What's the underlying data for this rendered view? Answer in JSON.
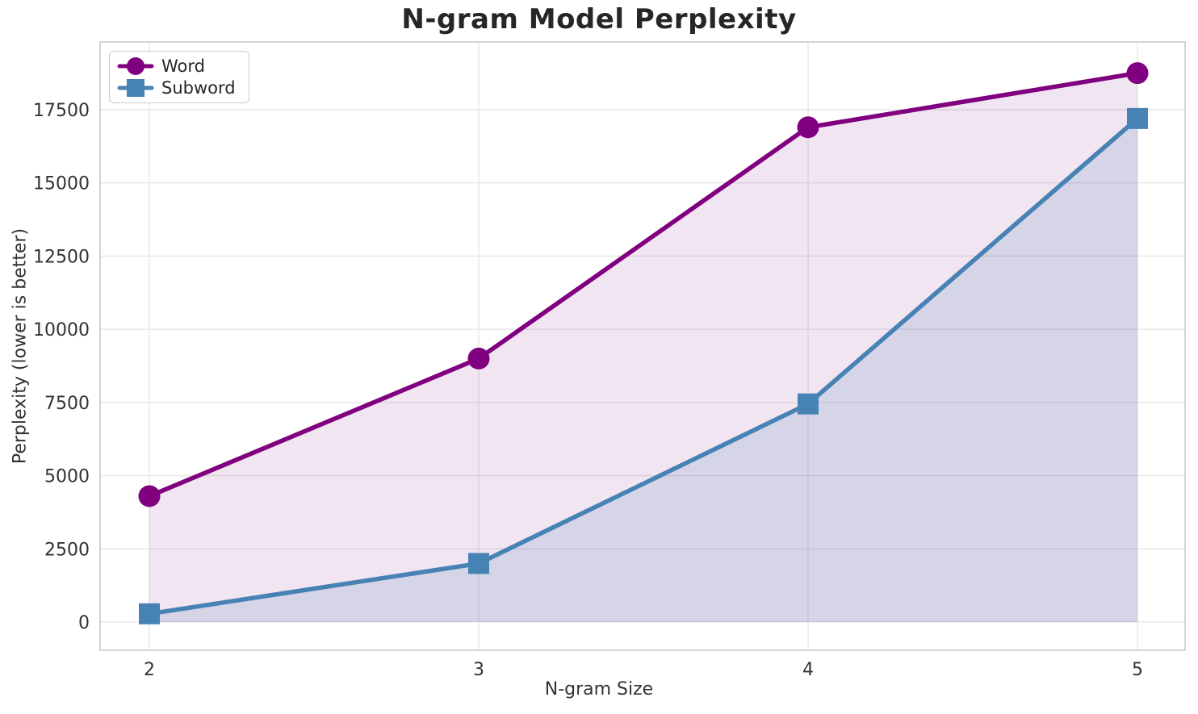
{
  "figure": {
    "background": "#ffffff",
    "grid_color": "#e6e6e6",
    "spine_color": "#d0d0d0",
    "text_color": "#333333",
    "title_color": "#262626"
  },
  "chart_data": {
    "type": "line",
    "title": "N-gram Model Perplexity",
    "xlabel": "N-gram Size",
    "ylabel": "Perplexity (lower is better)",
    "x": [
      2,
      3,
      4,
      5
    ],
    "series": [
      {
        "name": "Word",
        "color": "#800080",
        "marker": "circle",
        "values": [
          4300,
          9000,
          16900,
          18750
        ],
        "fill_to_zero": true,
        "fill_opacity": 0.1
      },
      {
        "name": "Subword",
        "color": "#4682B4",
        "marker": "square",
        "values": [
          280,
          2000,
          7450,
          17200
        ],
        "fill_to_zero": true,
        "fill_opacity": 0.16
      }
    ],
    "xticks": [
      2,
      3,
      4,
      5
    ],
    "yticks": [
      0,
      2500,
      5000,
      7500,
      10000,
      12500,
      15000,
      17500
    ],
    "xlim": [
      1.8505,
      5.1446
    ],
    "ylim": [
      -965,
      19815
    ],
    "grid": true,
    "legend_position": "upper left"
  }
}
